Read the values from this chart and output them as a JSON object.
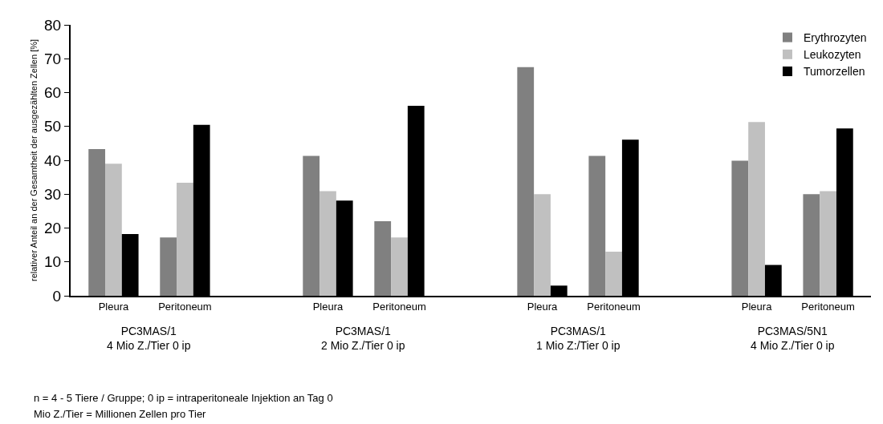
{
  "chart_data": {
    "type": "bar",
    "ylabel": "relativer Anteil an der Gesamtheit der ausgezählten Zellen [%]",
    "categories": [
      "Pleura",
      "Peritoneum",
      null,
      "Pleura",
      "Peritoneum",
      null,
      "Pleura",
      "Peritoneum",
      null,
      "Pleura",
      "Peritoneum"
    ],
    "series": [
      {
        "name": "Erythrozyten",
        "color": "#808080",
        "values": [
          43.3,
          17.2,
          null,
          41.3,
          22.0,
          null,
          67.5,
          41.3,
          null,
          39.9,
          30.0
        ]
      },
      {
        "name": "Leukozyten",
        "color": "#c0c0c0",
        "values": [
          39.0,
          33.4,
          null,
          30.9,
          17.2,
          null,
          30.0,
          13.0,
          null,
          51.3,
          30.9
        ]
      },
      {
        "name": "Tumorzellen",
        "color": "#000000",
        "values": [
          18.2,
          50.5,
          null,
          28.1,
          56.1,
          null,
          3.0,
          46.1,
          null,
          9.1,
          49.4
        ]
      }
    ],
    "ylim": [
      0,
      80
    ],
    "yticks": [
      0,
      10,
      20,
      30,
      40,
      50,
      60,
      70,
      80
    ],
    "legend": "top right",
    "annotations": [
      "PC3MAS/1\n4 Mio Z./Tier 0 ip",
      "PC3MAS/1\n2 Mio Z./Tier 0 ip",
      "PC3MAS/1\n1 Mio Z:/Tier 0 ip",
      "PC3MAS/5N1\n4 Mio Z./Tier 0 ip",
      "n = 4 - 5 Tiere / Gruppe; 0 ip = intraperitoneale Injektion an Tag 0",
      "Mio Z./Tier = Millionen Zellen pro Tier"
    ]
  }
}
